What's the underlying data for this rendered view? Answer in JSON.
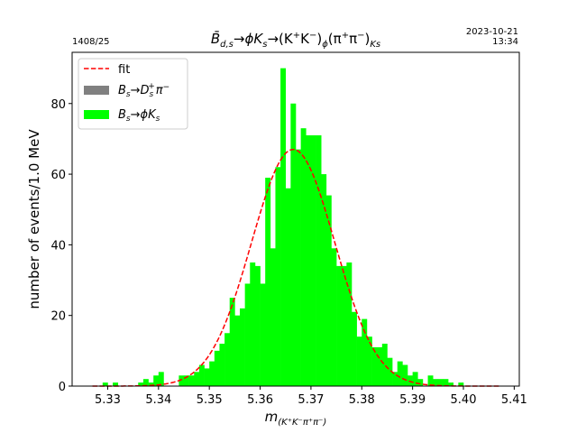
{
  "corner": {
    "left": "1408/25",
    "right_date": "2023-10-21",
    "right_time": "13:34"
  },
  "chart_data": {
    "type": "bar",
    "title": "B̄d,s→ϕKs→(K⁺K⁻)ϕ(π⁺π⁻)Ks",
    "title_parts": {
      "main1": "B̄",
      "sub1": "d,s",
      "main2": "→ϕK",
      "sub2": "s",
      "main3": "→(K",
      "sup3": "+",
      "main4": "K",
      "sup4": "−",
      "main5": ")",
      "sub5": "ϕ",
      "main6": "(π",
      "sup6": "+",
      "main7": "π",
      "sup7": "−",
      "main8": ")",
      "sub8": "Ks"
    },
    "xlabel": "m(K⁺K⁻π⁺π⁻)",
    "xlabel_parts": {
      "main": "m",
      "sub": "(K⁺K⁻π⁺π⁻)"
    },
    "ylabel": "number of events/1.0 MeV",
    "xlim": [
      5.323,
      5.411
    ],
    "ylim": [
      0,
      94.5
    ],
    "xticks": [
      "5.33",
      "5.34",
      "5.35",
      "5.36",
      "5.37",
      "5.38",
      "5.39",
      "5.40",
      "5.41"
    ],
    "yticks": [
      "0",
      "20",
      "40",
      "60",
      "80"
    ],
    "bin_width": 0.001,
    "legend": {
      "position": "upper left",
      "entries": [
        {
          "label": "fit",
          "style": "dashed-line",
          "color": "#ff0000"
        },
        {
          "label": "Bs→Ds+π−",
          "main": "B",
          "sub": "s",
          "rest": "→D",
          "sub2": "s",
          "sup2": "+",
          "tail": "π",
          "sup3": "−",
          "style": "patch",
          "color": "#808080"
        },
        {
          "label": "Bs→ϕKs",
          "main": "B",
          "sub": "s",
          "rest": "→ϕK",
          "sub2": "s",
          "style": "patch",
          "color": "#00ff00"
        }
      ]
    },
    "series": [
      {
        "name": "Bs→ϕKs",
        "color": "#00ff00",
        "bins": [
          {
            "x": 5.329,
            "y": 1
          },
          {
            "x": 5.331,
            "y": 1
          },
          {
            "x": 5.336,
            "y": 1
          },
          {
            "x": 5.337,
            "y": 2
          },
          {
            "x": 5.338,
            "y": 1
          },
          {
            "x": 5.339,
            "y": 3
          },
          {
            "x": 5.34,
            "y": 4
          },
          {
            "x": 5.344,
            "y": 3
          },
          {
            "x": 5.345,
            "y": 3
          },
          {
            "x": 5.346,
            "y": 3
          },
          {
            "x": 5.347,
            "y": 4
          },
          {
            "x": 5.348,
            "y": 6
          },
          {
            "x": 5.349,
            "y": 5
          },
          {
            "x": 5.35,
            "y": 7
          },
          {
            "x": 5.351,
            "y": 10
          },
          {
            "x": 5.352,
            "y": 12
          },
          {
            "x": 5.353,
            "y": 15
          },
          {
            "x": 5.354,
            "y": 25
          },
          {
            "x": 5.355,
            "y": 20
          },
          {
            "x": 5.356,
            "y": 22
          },
          {
            "x": 5.357,
            "y": 29
          },
          {
            "x": 5.358,
            "y": 35
          },
          {
            "x": 5.359,
            "y": 34
          },
          {
            "x": 5.36,
            "y": 29
          },
          {
            "x": 5.361,
            "y": 59
          },
          {
            "x": 5.362,
            "y": 39
          },
          {
            "x": 5.363,
            "y": 62
          },
          {
            "x": 5.364,
            "y": 90
          },
          {
            "x": 5.365,
            "y": 56
          },
          {
            "x": 5.366,
            "y": 80
          },
          {
            "x": 5.367,
            "y": 67
          },
          {
            "x": 5.368,
            "y": 73
          },
          {
            "x": 5.369,
            "y": 71
          },
          {
            "x": 5.37,
            "y": 71
          },
          {
            "x": 5.371,
            "y": 71
          },
          {
            "x": 5.372,
            "y": 60
          },
          {
            "x": 5.373,
            "y": 54
          },
          {
            "x": 5.374,
            "y": 39
          },
          {
            "x": 5.375,
            "y": 34
          },
          {
            "x": 5.376,
            "y": 34
          },
          {
            "x": 5.377,
            "y": 35
          },
          {
            "x": 5.378,
            "y": 21
          },
          {
            "x": 5.379,
            "y": 14
          },
          {
            "x": 5.38,
            "y": 19
          },
          {
            "x": 5.381,
            "y": 14
          },
          {
            "x": 5.382,
            "y": 11
          },
          {
            "x": 5.383,
            "y": 11
          },
          {
            "x": 5.384,
            "y": 12
          },
          {
            "x": 5.385,
            "y": 8
          },
          {
            "x": 5.386,
            "y": 4
          },
          {
            "x": 5.387,
            "y": 7
          },
          {
            "x": 5.388,
            "y": 6
          },
          {
            "x": 5.389,
            "y": 3
          },
          {
            "x": 5.39,
            "y": 4
          },
          {
            "x": 5.391,
            "y": 2
          },
          {
            "x": 5.393,
            "y": 3
          },
          {
            "x": 5.394,
            "y": 2
          },
          {
            "x": 5.395,
            "y": 2
          },
          {
            "x": 5.396,
            "y": 2
          },
          {
            "x": 5.397,
            "y": 1
          },
          {
            "x": 5.399,
            "y": 1
          }
        ]
      },
      {
        "name": "Bs→Ds+π−",
        "color": "#808080",
        "bins": []
      }
    ],
    "fit": {
      "name": "fit",
      "color": "#ff0000",
      "style": "dashed",
      "mean": 5.3665,
      "sigma": 0.0082,
      "amplitude": 67,
      "range": [
        5.327,
        5.407
      ]
    }
  }
}
